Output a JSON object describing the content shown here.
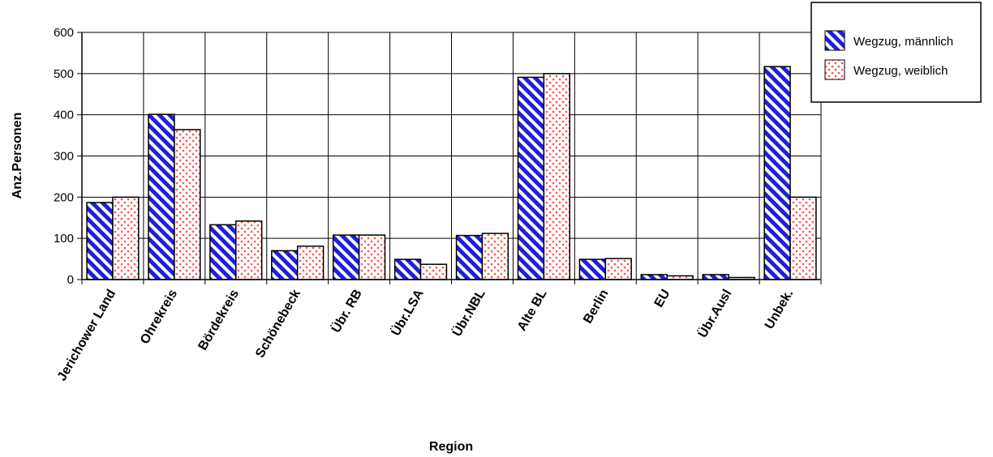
{
  "chart_data": {
    "type": "bar",
    "xlabel": "Region",
    "ylabel": "Anz.Personen",
    "ylim": [
      0,
      600
    ],
    "yticks": [
      0,
      100,
      200,
      300,
      400,
      500,
      600
    ],
    "grid": true,
    "legend_position": "top-right",
    "categories": [
      "Jerichower Land",
      "Ohrekreis",
      "Bördekreis",
      "Schönebeck",
      "Übr. RB",
      "Übr.LSA",
      "Übr.NBL",
      "Alte BL",
      "Berlin",
      "EU",
      "Übr.Ausl",
      "Unbek."
    ],
    "series": [
      {
        "name": "Wegzug, männlich",
        "color": "#1f1fd9",
        "pattern": "diagonal-stripes",
        "values": [
          187,
          401,
          133,
          70,
          108,
          49,
          107,
          491,
          49,
          12,
          12,
          517
        ]
      },
      {
        "name": "Wegzug, weiblich",
        "color": "#ff6f6f",
        "pattern": "dots",
        "values": [
          200,
          364,
          142,
          81,
          108,
          37,
          112,
          500,
          51,
          9,
          5,
          200
        ]
      }
    ]
  }
}
